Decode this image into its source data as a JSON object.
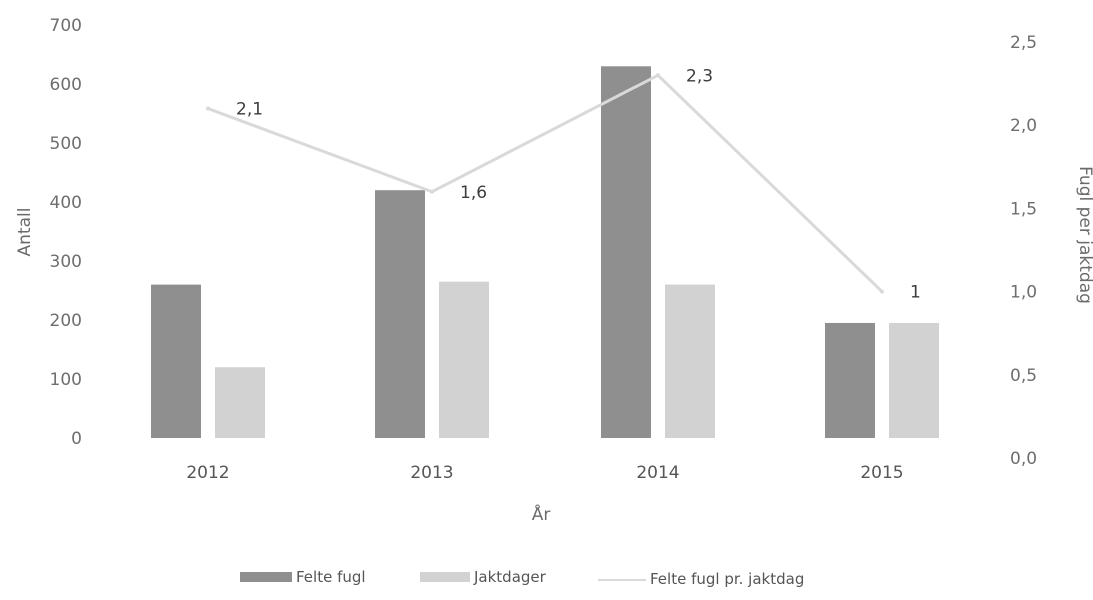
{
  "chart_data": {
    "type": "bar",
    "categories": [
      "2012",
      "2013",
      "2014",
      "2015"
    ],
    "series": [
      {
        "name": "Felte fugl",
        "kind": "bar",
        "axis": "left",
        "color": "#8f8f8f",
        "values": [
          260,
          420,
          630,
          195
        ]
      },
      {
        "name": "Jaktdager",
        "kind": "bar",
        "axis": "left",
        "color": "#d2d2d2",
        "values": [
          120,
          265,
          260,
          195
        ]
      },
      {
        "name": "Felte fugl pr. jaktdag",
        "kind": "line",
        "axis": "right",
        "color": "#d9d9d9",
        "values": [
          2.1,
          1.6,
          2.3,
          1
        ],
        "labels": [
          "2,1",
          "1,6",
          "2,3",
          "1"
        ]
      }
    ],
    "xlabel": "År",
    "ylabel": "Antall",
    "y2label": "Fugl per jaktdag",
    "ylim": [
      0,
      700
    ],
    "y2lim": [
      0,
      2.5
    ],
    "yticks": [
      "0",
      "100",
      "200",
      "300",
      "400",
      "500",
      "600",
      "700"
    ],
    "y2ticks": [
      "0,0",
      "0,5",
      "1,0",
      "1,5",
      "2,0",
      "2,5"
    ],
    "grid": false,
    "legend": "bottom"
  }
}
